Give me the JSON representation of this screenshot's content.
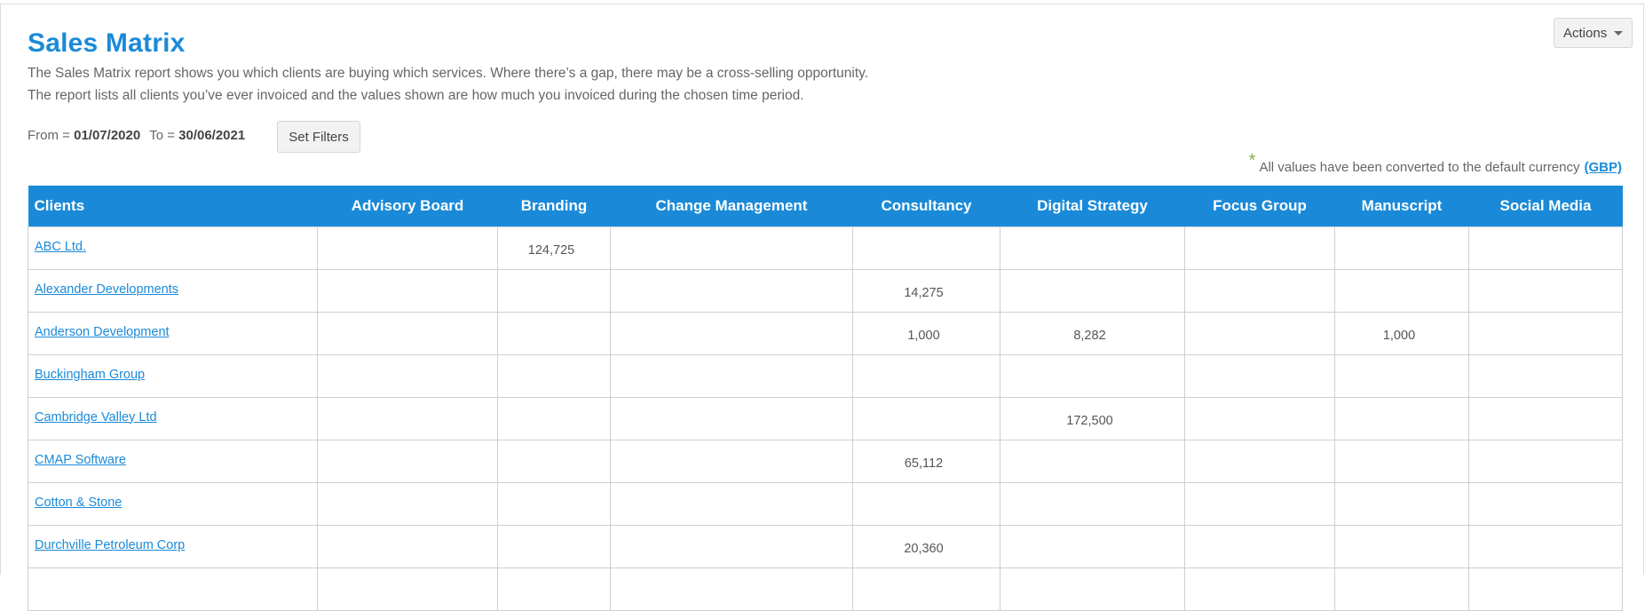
{
  "page": {
    "title": "Sales Matrix",
    "description_line1": "The Sales Matrix report shows you which clients are buying which services. Where there’s a gap, there may be a cross-selling opportunity.",
    "description_line2": "The report lists all clients you’ve ever invoiced and the values shown are how much you invoiced during the chosen time period."
  },
  "actions": {
    "label": "Actions"
  },
  "filters": {
    "from_label": "From =",
    "from_value": "01/07/2020",
    "to_label": "To =",
    "to_value": "30/06/2021",
    "set_filters_label": "Set Filters"
  },
  "currency_note": {
    "star": "*",
    "text": "All values have been converted to the default currency",
    "link": "(GBP)"
  },
  "table": {
    "headers": [
      "Clients",
      "Advisory Board",
      "Branding",
      "Change Management",
      "Consultancy",
      "Digital Strategy",
      "Focus Group",
      "Manuscript",
      "Social Media"
    ],
    "rows": [
      {
        "client": "ABC Ltd.",
        "values": [
          "",
          "124,725",
          "",
          "",
          "",
          "",
          "",
          ""
        ]
      },
      {
        "client": "Alexander Developments",
        "values": [
          "",
          "",
          "",
          "14,275",
          "",
          "",
          "",
          ""
        ]
      },
      {
        "client": "Anderson Development",
        "values": [
          "",
          "",
          "",
          "1,000",
          "8,282",
          "",
          "1,000",
          ""
        ]
      },
      {
        "client": "Buckingham Group",
        "values": [
          "",
          "",
          "",
          "",
          "",
          "",
          "",
          ""
        ]
      },
      {
        "client": "Cambridge Valley Ltd",
        "values": [
          "",
          "",
          "",
          "",
          "172,500",
          "",
          "",
          ""
        ]
      },
      {
        "client": "CMAP Software",
        "values": [
          "",
          "",
          "",
          "65,112",
          "",
          "",
          "",
          ""
        ]
      },
      {
        "client": "Cotton & Stone",
        "values": [
          "",
          "",
          "",
          "",
          "",
          "",
          "",
          ""
        ]
      },
      {
        "client": "Durchville Petroleum Corp",
        "values": [
          "",
          "",
          "",
          "20,360",
          "",
          "",
          "",
          ""
        ]
      },
      {
        "client": "",
        "values": [
          "",
          "",
          "",
          "",
          "",
          "",
          "",
          ""
        ]
      }
    ]
  },
  "colors": {
    "accent": "#1a8ad8",
    "star": "#7ab648"
  }
}
